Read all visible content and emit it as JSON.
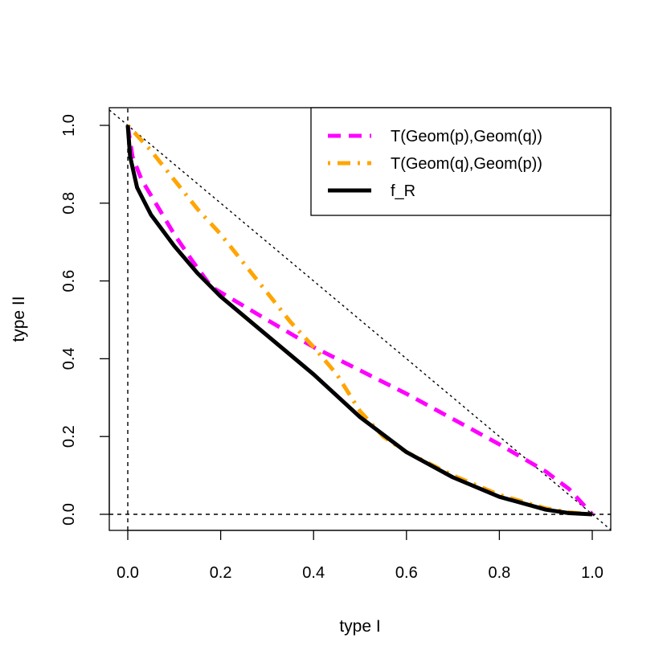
{
  "chart_data": {
    "type": "line",
    "title": "",
    "xlabel": "type I",
    "ylabel": "type II",
    "xlim": [
      0,
      1
    ],
    "ylim": [
      0,
      1
    ],
    "xticks": [
      "0.0",
      "0.2",
      "0.4",
      "0.6",
      "0.8",
      "1.0"
    ],
    "yticks": [
      "0.0",
      "0.2",
      "0.4",
      "0.6",
      "0.8",
      "1.0"
    ],
    "grid": false,
    "legend_position": "top-right",
    "reference_lines": [
      {
        "name": "diagonal",
        "x": [
          0,
          1
        ],
        "y": [
          1,
          0
        ],
        "style": "dotted"
      },
      {
        "name": "x-zero",
        "x": [
          0,
          0
        ],
        "y": [
          0,
          1
        ],
        "style": "dashed"
      },
      {
        "name": "y-zero",
        "x": [
          0,
          1
        ],
        "y": [
          0,
          0
        ],
        "style": "dashed"
      }
    ],
    "series": [
      {
        "name": "T(Geom(p),Geom(q))",
        "color": "#ff00ff",
        "style": "dashed",
        "x": [
          0,
          0.01,
          0.03,
          0.06,
          0.1,
          0.14,
          0.18,
          0.3,
          0.4,
          0.5,
          0.6,
          0.7,
          0.8,
          0.9,
          0.95,
          1.0
        ],
        "y": [
          1.0,
          0.92,
          0.86,
          0.8,
          0.72,
          0.65,
          0.585,
          0.5,
          0.43,
          0.37,
          0.31,
          0.245,
          0.18,
          0.11,
          0.065,
          0.0
        ]
      },
      {
        "name": "T(Geom(q),Geom(p))",
        "color": "#ffa500",
        "style": "dotdash",
        "x": [
          0,
          0.05,
          0.1,
          0.15,
          0.2,
          0.25,
          0.3,
          0.35,
          0.4,
          0.45,
          0.5,
          0.55,
          0.6,
          0.7,
          0.8,
          0.9,
          0.95,
          1.0
        ],
        "y": [
          1.0,
          0.935,
          0.86,
          0.785,
          0.72,
          0.645,
          0.57,
          0.495,
          0.43,
          0.36,
          0.265,
          0.2,
          0.16,
          0.1,
          0.05,
          0.015,
          0.005,
          0.0
        ]
      },
      {
        "name": "f_R",
        "color": "#000000",
        "style": "solid",
        "x": [
          0,
          0.005,
          0.02,
          0.05,
          0.1,
          0.15,
          0.2,
          0.3,
          0.4,
          0.5,
          0.6,
          0.7,
          0.8,
          0.9,
          0.95,
          1.0
        ],
        "y": [
          1.0,
          0.92,
          0.84,
          0.77,
          0.69,
          0.62,
          0.56,
          0.46,
          0.36,
          0.25,
          0.16,
          0.095,
          0.045,
          0.012,
          0.003,
          0.0
        ]
      }
    ]
  }
}
